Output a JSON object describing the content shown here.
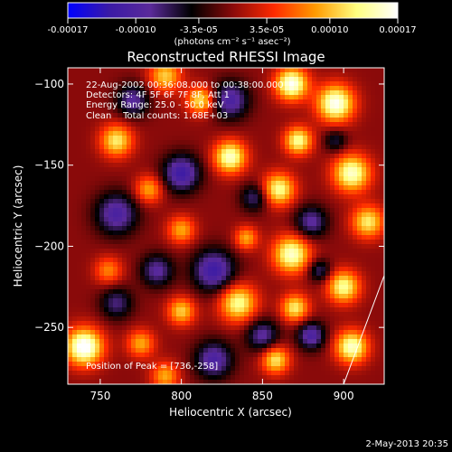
{
  "chart_data": {
    "type": "heatmap",
    "title": "Reconstructed RHESSI Image",
    "xlabel": "Heliocentric X (arcsec)",
    "ylabel": "Heliocentric Y (arcsec)",
    "xlim": [
      730,
      925
    ],
    "ylim": [
      -285,
      -90
    ],
    "x_ticks": [
      750,
      800,
      850,
      900
    ],
    "y_ticks": [
      -100,
      -150,
      -200,
      -250
    ],
    "colorbar": {
      "label": "(photons cm⁻² s⁻¹ asec⁻²)",
      "range": [
        -0.00017,
        0.00017
      ],
      "ticks": [
        {
          "value": -0.00017,
          "label": "-0.00017"
        },
        {
          "value": -0.0001,
          "label": "-0.00010"
        },
        {
          "value": -3.5e-05,
          "label": "-3.5e-05"
        },
        {
          "value": 3.5e-05,
          "label": "3.5e-05"
        },
        {
          "value": 0.0001,
          "label": "0.00010"
        },
        {
          "value": 0.00017,
          "label": "0.00017"
        }
      ],
      "colormap": [
        "#0000ff",
        "#3a1aa6",
        "#5a2a9a",
        "#000000",
        "#8a0a0a",
        "#ff2a00",
        "#ff9a00",
        "#ffff80",
        "#ffffff"
      ]
    },
    "annotations": [
      "22-Aug-2002 00:36:08.000 to 00:38:00.000",
      "Detectors: 4F 5F 6F 7F 8F, Att 1",
      "Energy Range: 25.0 - 50.0 keV",
      "Clean    Total counts: 1.68E+03"
    ],
    "peak_text": "Position of Peak = [736,-258]",
    "peak": {
      "x": 736,
      "y": -258
    },
    "grid_line": {
      "from": {
        "x": 900,
        "y": -285
      },
      "to": {
        "x": 925,
        "y": -218
      }
    },
    "sources": [
      {
        "x": 868,
        "y": -100,
        "amp": 1.1,
        "w": 7
      },
      {
        "x": 790,
        "y": -95,
        "amp": 0.7,
        "w": 7
      },
      {
        "x": 812,
        "y": -110,
        "amp": 0.8,
        "w": 6
      },
      {
        "x": 895,
        "y": -112,
        "amp": 1.1,
        "w": 8
      },
      {
        "x": 872,
        "y": -135,
        "amp": 0.9,
        "w": 6
      },
      {
        "x": 760,
        "y": -135,
        "amp": 0.8,
        "w": 7
      },
      {
        "x": 830,
        "y": -145,
        "amp": 1.0,
        "w": 7
      },
      {
        "x": 905,
        "y": -155,
        "amp": 1.0,
        "w": 8
      },
      {
        "x": 780,
        "y": -165,
        "amp": 0.6,
        "w": 6
      },
      {
        "x": 860,
        "y": -165,
        "amp": 0.9,
        "w": 7
      },
      {
        "x": 915,
        "y": -185,
        "amp": 0.8,
        "w": 7
      },
      {
        "x": 800,
        "y": -190,
        "amp": 0.6,
        "w": 6
      },
      {
        "x": 868,
        "y": -205,
        "amp": 1.0,
        "w": 8
      },
      {
        "x": 755,
        "y": -215,
        "amp": 0.5,
        "w": 6
      },
      {
        "x": 900,
        "y": -225,
        "amp": 0.9,
        "w": 7
      },
      {
        "x": 835,
        "y": -235,
        "amp": 0.9,
        "w": 8
      },
      {
        "x": 870,
        "y": -238,
        "amp": 0.8,
        "w": 6
      },
      {
        "x": 800,
        "y": -240,
        "amp": 0.7,
        "w": 6
      },
      {
        "x": 740,
        "y": -262,
        "amp": 1.2,
        "w": 8
      },
      {
        "x": 775,
        "y": -260,
        "amp": 0.6,
        "w": 6
      },
      {
        "x": 858,
        "y": -270,
        "amp": 0.8,
        "w": 6
      },
      {
        "x": 905,
        "y": -262,
        "amp": 1.0,
        "w": 7
      },
      {
        "x": 790,
        "y": -280,
        "amp": 0.6,
        "w": 6
      },
      {
        "x": 840,
        "y": -195,
        "amp": 0.6,
        "w": 5
      },
      {
        "x": 880,
        "y": -185,
        "amp": -0.6,
        "w": 7
      },
      {
        "x": 830,
        "y": -110,
        "amp": -0.7,
        "w": 8
      },
      {
        "x": 770,
        "y": -110,
        "amp": -0.6,
        "w": 7
      },
      {
        "x": 800,
        "y": -155,
        "amp": -0.8,
        "w": 8
      },
      {
        "x": 845,
        "y": -170,
        "amp": -0.5,
        "w": 6
      },
      {
        "x": 760,
        "y": -180,
        "amp": -0.7,
        "w": 9
      },
      {
        "x": 820,
        "y": -215,
        "amp": -0.8,
        "w": 9
      },
      {
        "x": 785,
        "y": -215,
        "amp": -0.6,
        "w": 7
      },
      {
        "x": 850,
        "y": -255,
        "amp": -0.6,
        "w": 7
      },
      {
        "x": 880,
        "y": -255,
        "amp": -0.7,
        "w": 6
      },
      {
        "x": 820,
        "y": -270,
        "amp": -0.7,
        "w": 8
      },
      {
        "x": 760,
        "y": -235,
        "amp": -0.5,
        "w": 7
      },
      {
        "x": 885,
        "y": -215,
        "amp": -0.5,
        "w": 5
      },
      {
        "x": 895,
        "y": -135,
        "amp": -0.4,
        "w": 5
      }
    ]
  },
  "footer": {
    "timestamp": "2-May-2013 20:35"
  }
}
